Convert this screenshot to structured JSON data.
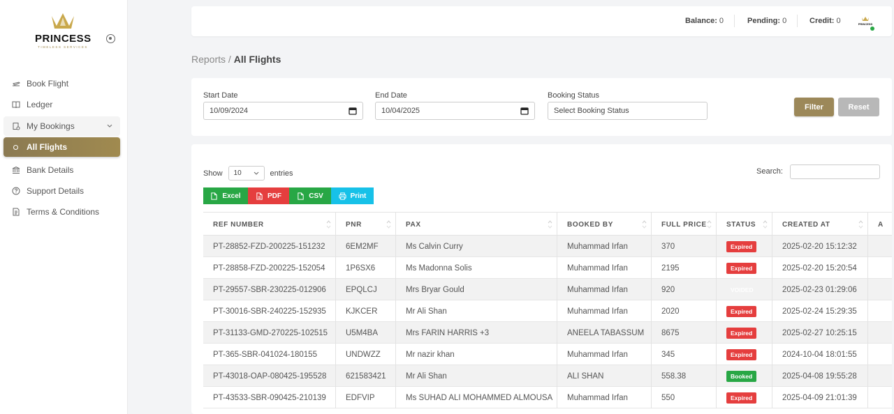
{
  "brand": {
    "name": "PRINCESS",
    "tagline": "TIMELESS SERVICES",
    "mini_name": "PRINCESS"
  },
  "sidebar": {
    "items": [
      {
        "label": "Book Flight",
        "icon": "plane-icon"
      },
      {
        "label": "Ledger",
        "icon": "book-icon"
      },
      {
        "label": "My Bookings",
        "icon": "bookings-icon"
      },
      {
        "label": "All Flights",
        "icon": "circle-icon"
      },
      {
        "label": "Bank Details",
        "icon": "bank-icon"
      },
      {
        "label": "Support Details",
        "icon": "help-icon"
      },
      {
        "label": "Terms & Conditions",
        "icon": "document-icon"
      }
    ]
  },
  "header": {
    "balance_label": "Balance:",
    "balance_value": "0",
    "pending_label": "Pending:",
    "pending_value": "0",
    "credit_label": "Credit:",
    "credit_value": "0"
  },
  "breadcrumb": {
    "parent": "Reports",
    "separator": " / ",
    "current": "All Flights"
  },
  "filters": {
    "start_date_label": "Start Date",
    "start_date_value": "10/09/2024",
    "end_date_label": "End Date",
    "end_date_value": "10/04/2025",
    "status_label": "Booking Status",
    "status_placeholder": "Select Booking Status",
    "filter_button": "Filter",
    "reset_button": "Reset"
  },
  "table_controls": {
    "show_label": "Show",
    "entries_value": "10",
    "entries_label": "entries",
    "search_label": "Search:",
    "exports": [
      "Excel",
      "PDF",
      "CSV",
      "Print"
    ]
  },
  "table": {
    "columns": [
      "REF NUMBER",
      "PNR",
      "PAX",
      "BOOKED BY",
      "FULL PRICE",
      "STATUS",
      "CREATED AT",
      "A"
    ],
    "rows": [
      {
        "ref": "PT-28852-FZD-200225-151232",
        "pnr": "6EM2MF",
        "pax": "Ms Calvin Curry",
        "booked_by": "Muhammad Irfan",
        "price": "370",
        "status": "Expired",
        "created": "2025-02-20 15:12:32"
      },
      {
        "ref": "PT-28858-FZD-200225-152054",
        "pnr": "1P6SX6",
        "pax": "Ms Madonna Solis",
        "booked_by": "Muhammad Irfan",
        "price": "2195",
        "status": "Expired",
        "created": "2025-02-20 15:20:54"
      },
      {
        "ref": "PT-29557-SBR-230225-012906",
        "pnr": "EPQLCJ",
        "pax": "Mrs Bryar Gould",
        "booked_by": "Muhammad Irfan",
        "price": "920",
        "status": "VOIDED",
        "created": "2025-02-23 01:29:06"
      },
      {
        "ref": "PT-30016-SBR-240225-152935",
        "pnr": "KJKCER",
        "pax": "Mr Ali Shan",
        "booked_by": "Muhammad Irfan",
        "price": "2020",
        "status": "Expired",
        "created": "2025-02-24 15:29:35"
      },
      {
        "ref": "PT-31133-GMD-270225-102515",
        "pnr": "U5M4BA",
        "pax": "Mrs FARIN HARRIS +3",
        "booked_by": "ANEELA TABASSUM",
        "price": "8675",
        "status": "Expired",
        "created": "2025-02-27 10:25:15"
      },
      {
        "ref": "PT-365-SBR-041024-180155",
        "pnr": "UNDWZZ",
        "pax": "Mr nazir khan",
        "booked_by": "Muhammad Irfan",
        "price": "345",
        "status": "Expired",
        "created": "2024-10-04 18:01:55"
      },
      {
        "ref": "PT-43018-OAP-080425-195528",
        "pnr": "621583421",
        "pax": "Mr Ali Shan",
        "booked_by": "ALI SHAN",
        "price": "558.38",
        "status": "Booked",
        "created": "2025-04-08 19:55:28"
      },
      {
        "ref": "PT-43533-SBR-090425-210139",
        "pnr": "EDFVIP",
        "pax": "Ms SUHAD ALI MOHAMMED ALMOUSA",
        "booked_by": "Muhammad Irfan",
        "price": "550",
        "status": "Expired",
        "created": "2025-04-09 21:01:39"
      }
    ]
  },
  "colors": {
    "accent": "#9c8859",
    "expired": "#e53e3e",
    "booked": "#28a745",
    "voided": "#e6e6e6",
    "excel": "#28a745",
    "pdf": "#e53e3e",
    "csv": "#28a745",
    "print": "#17c1e8"
  }
}
